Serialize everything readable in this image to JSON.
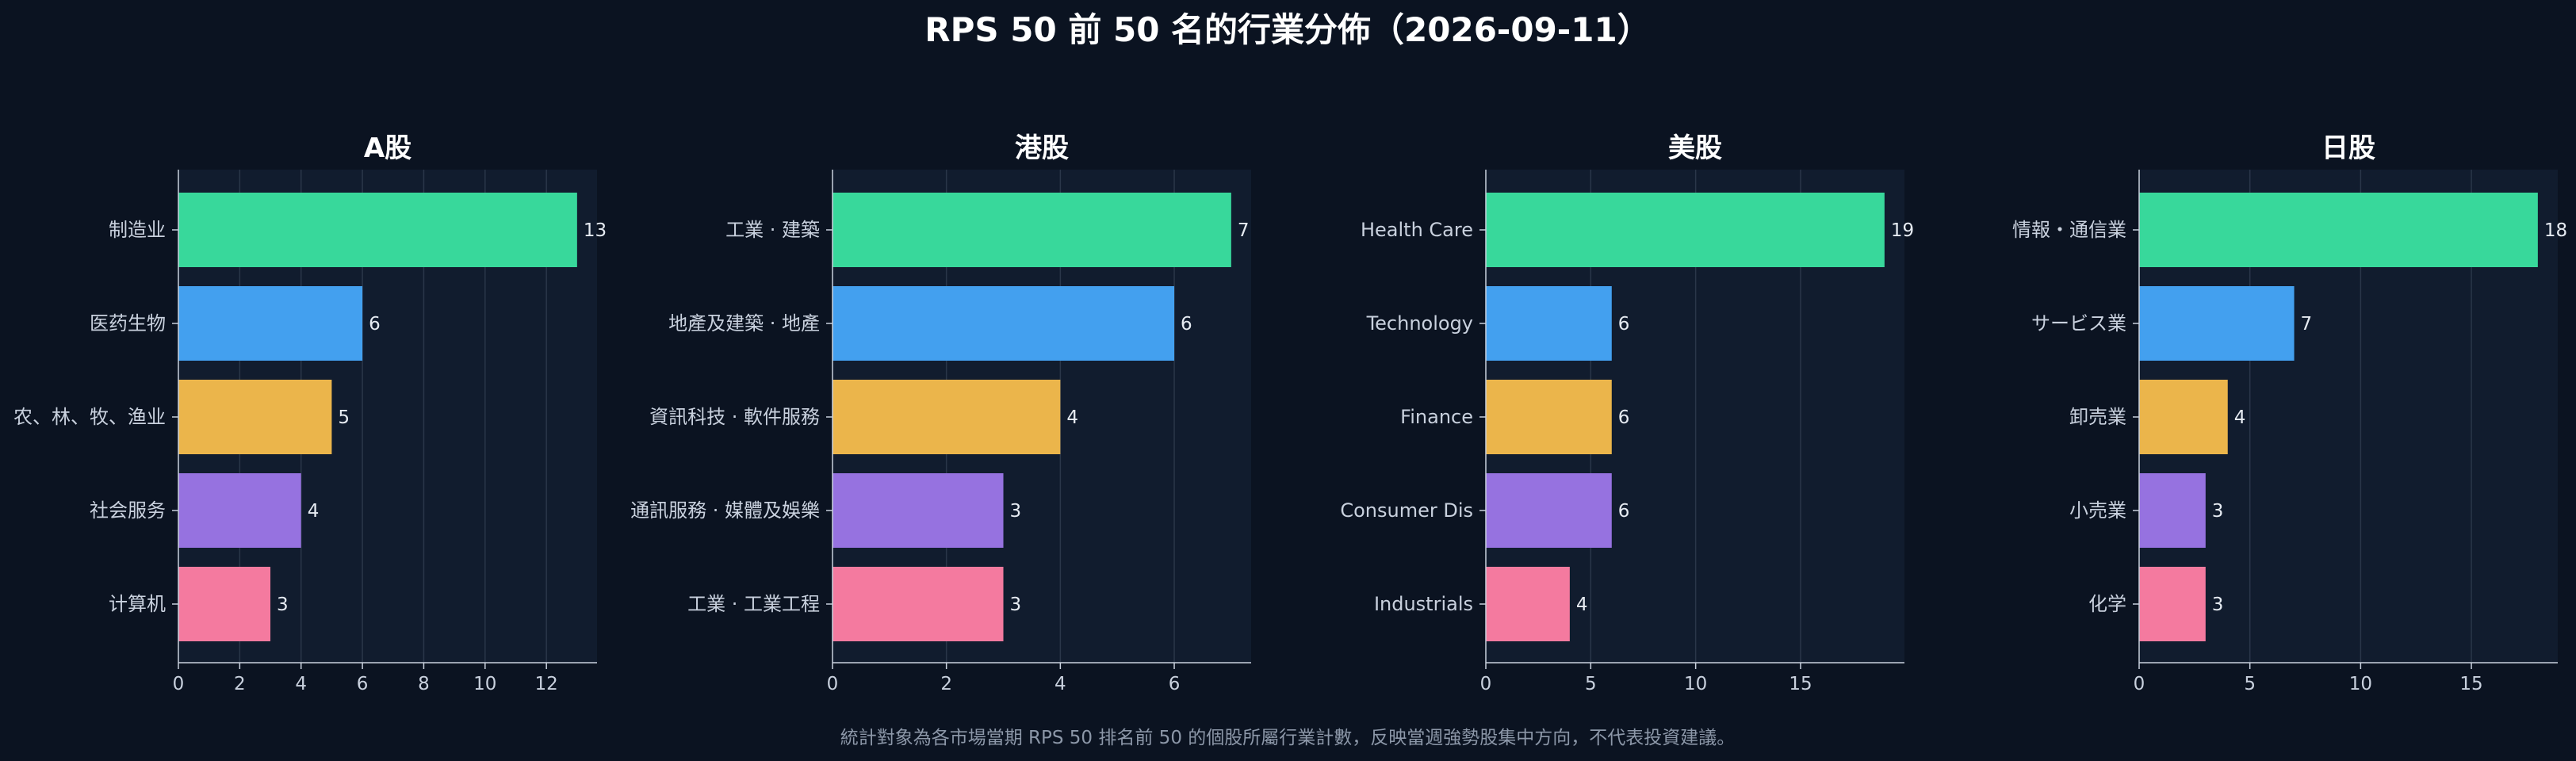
{
  "title": "RPS 50 前 50 名的行業分佈（2026-09-11）",
  "footnote": "統計對象為各市場當期 RPS 50 排名前 50 的個股所屬行業計數，反映當週強勢股集中方向，不代表投資建議。",
  "colors": {
    "background": "#0b1321",
    "plot_bg": "#111c2e",
    "grid": "#2a3649",
    "bars": [
      "#38d89b",
      "#43a0ef",
      "#ebb54b",
      "#9672e0",
      "#f47a9f"
    ]
  },
  "chart_data": [
    {
      "type": "bar",
      "orientation": "horizontal",
      "title": "A股",
      "categories": [
        "制造业",
        "医药生物",
        "农、林、牧、渔业",
        "社会服务",
        "计算机"
      ],
      "values": [
        13,
        6,
        5,
        4,
        3
      ],
      "xticks": [
        0,
        2,
        4,
        6,
        8,
        10,
        12
      ],
      "xlim": [
        0,
        13.65
      ],
      "grid": true
    },
    {
      "type": "bar",
      "orientation": "horizontal",
      "title": "港股",
      "categories": [
        "工業 · 建築",
        "地產及建築 · 地產",
        "資訊科技 · 軟件服務",
        "通訊服務 · 媒體及娛樂",
        "工業 · 工業工程"
      ],
      "values": [
        7,
        6,
        4,
        3,
        3
      ],
      "xticks": [
        0,
        2,
        4,
        6
      ],
      "xlim": [
        0,
        7.35
      ],
      "grid": true
    },
    {
      "type": "bar",
      "orientation": "horizontal",
      "title": "美股",
      "categories": [
        "Health Care",
        "Technology",
        "Finance",
        "Consumer Dis",
        "Industrials"
      ],
      "values": [
        19,
        6,
        6,
        6,
        4
      ],
      "xticks": [
        0,
        5,
        10,
        15
      ],
      "xlim": [
        0,
        19.95
      ],
      "grid": true
    },
    {
      "type": "bar",
      "orientation": "horizontal",
      "title": "日股",
      "categories": [
        "情報・通信業",
        "サービス業",
        "卸売業",
        "小売業",
        "化学"
      ],
      "values": [
        18,
        7,
        4,
        3,
        3
      ],
      "xticks": [
        0,
        5,
        10,
        15
      ],
      "xlim": [
        0,
        18.9
      ],
      "grid": true
    }
  ]
}
